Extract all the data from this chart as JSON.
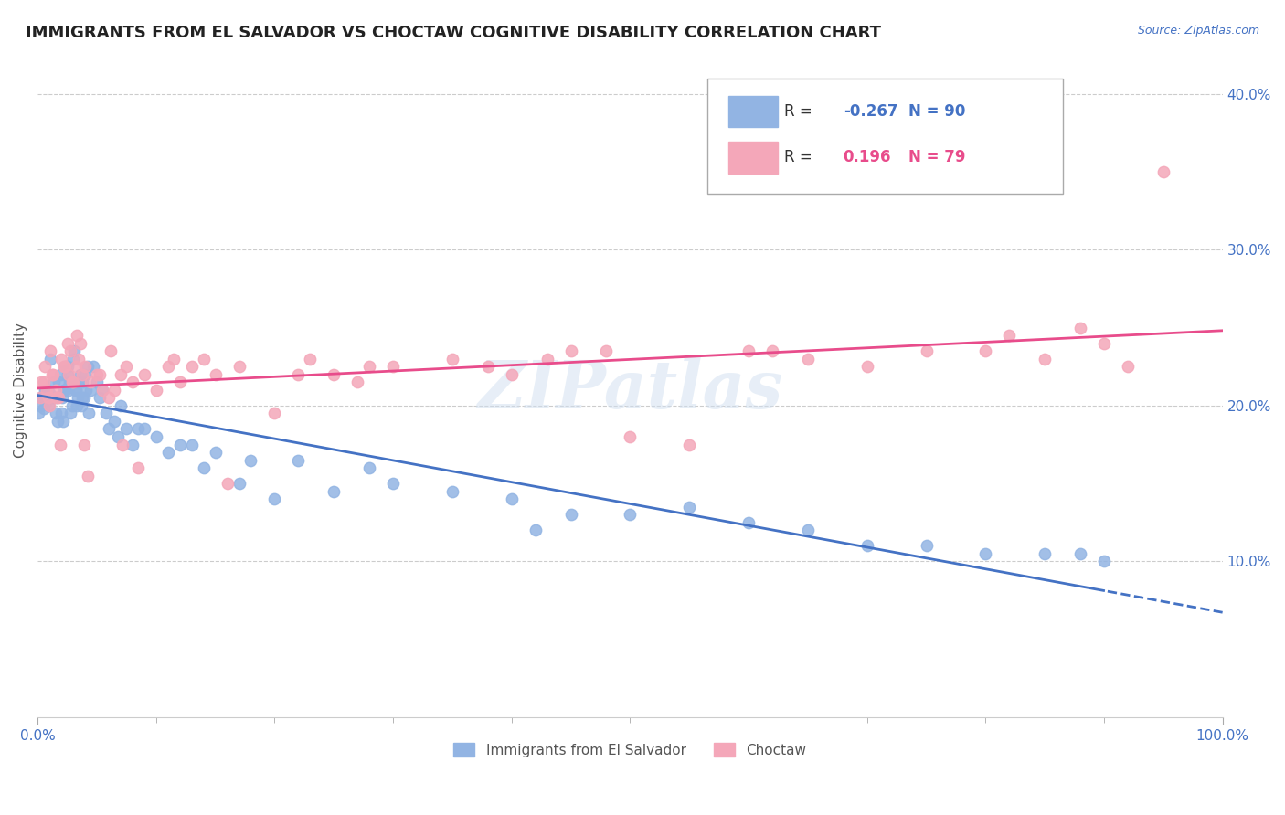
{
  "title": "IMMIGRANTS FROM EL SALVADOR VS CHOCTAW COGNITIVE DISABILITY CORRELATION CHART",
  "source": "Source: ZipAtlas.com",
  "xlabel": "",
  "ylabel": "Cognitive Disability",
  "series": [
    {
      "name": "Immigrants from El Salvador",
      "R": -0.267,
      "N": 90,
      "color": "#92b4e3",
      "trend_color": "#4472c4",
      "x": [
        0.1,
        0.2,
        0.3,
        0.5,
        0.7,
        0.8,
        1.0,
        1.2,
        1.4,
        1.5,
        1.6,
        1.7,
        1.8,
        1.9,
        2.0,
        2.1,
        2.2,
        2.3,
        2.4,
        2.5,
        2.6,
        2.7,
        2.8,
        2.9,
        3.0,
        3.1,
        3.2,
        3.3,
        3.4,
        3.5,
        3.6,
        3.7,
        3.8,
        3.9,
        4.0,
        4.2,
        4.5,
        5.0,
        5.5,
        6.0,
        6.5,
        7.0,
        7.5,
        8.0,
        9.0,
        10.0,
        11.0,
        12.0,
        13.0,
        15.0,
        17.0,
        20.0,
        22.0,
        25.0,
        28.0,
        30.0,
        35.0,
        40.0,
        45.0,
        50.0,
        55.0,
        60.0,
        65.0,
        70.0,
        75.0,
        80.0,
        85.0,
        88.0,
        90.0,
        0.4,
        0.6,
        0.9,
        1.1,
        1.3,
        2.15,
        2.55,
        2.75,
        3.25,
        3.75,
        4.1,
        4.3,
        4.7,
        5.2,
        5.8,
        6.8,
        8.5,
        14.0,
        18.0,
        42.0
      ],
      "y": [
        19.5,
        20.0,
        20.5,
        19.8,
        20.2,
        21.0,
        20.8,
        20.5,
        21.5,
        19.5,
        20.5,
        19.0,
        21.5,
        22.0,
        19.5,
        20.5,
        21.0,
        21.0,
        22.5,
        22.5,
        21.0,
        21.5,
        19.5,
        20.0,
        23.0,
        23.5,
        21.0,
        20.0,
        20.5,
        21.5,
        22.0,
        20.0,
        21.5,
        20.5,
        22.0,
        22.5,
        21.0,
        21.5,
        21.0,
        18.5,
        19.0,
        20.0,
        18.5,
        17.5,
        18.5,
        18.0,
        17.0,
        17.5,
        17.5,
        17.0,
        15.0,
        14.0,
        16.5,
        14.5,
        16.0,
        15.0,
        14.5,
        14.0,
        13.0,
        13.0,
        13.5,
        12.5,
        12.0,
        11.0,
        11.0,
        10.5,
        10.5,
        10.5,
        10.0,
        20.5,
        21.0,
        20.0,
        23.0,
        20.5,
        19.0,
        22.0,
        21.5,
        21.0,
        20.5,
        21.0,
        19.5,
        22.5,
        20.5,
        19.5,
        18.0,
        18.5,
        16.0,
        16.5,
        12.0
      ]
    },
    {
      "name": "Choctaw",
      "R": 0.196,
      "N": 79,
      "color": "#f4a7b9",
      "trend_color": "#e84c8b",
      "x": [
        0.2,
        0.5,
        0.8,
        1.0,
        1.2,
        1.5,
        1.8,
        2.0,
        2.2,
        2.5,
        2.8,
        3.0,
        3.2,
        3.5,
        3.8,
        4.0,
        4.5,
        5.0,
        5.5,
        6.0,
        6.5,
        7.0,
        7.5,
        8.0,
        9.0,
        10.0,
        11.0,
        12.0,
        13.0,
        14.0,
        15.0,
        17.0,
        20.0,
        22.0,
        25.0,
        27.0,
        30.0,
        35.0,
        40.0,
        45.0,
        50.0,
        55.0,
        60.0,
        65.0,
        70.0,
        75.0,
        80.0,
        82.0,
        85.0,
        88.0,
        90.0,
        92.0,
        95.0,
        0.3,
        0.6,
        0.9,
        1.1,
        1.3,
        1.6,
        1.9,
        2.3,
        2.6,
        2.9,
        3.3,
        3.6,
        3.9,
        4.2,
        5.2,
        6.2,
        7.2,
        8.5,
        11.5,
        16.0,
        23.0,
        28.0,
        38.0,
        43.0,
        48.0,
        62.0
      ],
      "y": [
        20.5,
        21.5,
        21.0,
        20.0,
        22.0,
        21.0,
        20.5,
        23.0,
        22.5,
        24.0,
        23.5,
        21.5,
        22.5,
        23.0,
        22.0,
        22.5,
        21.5,
        22.0,
        21.0,
        20.5,
        21.0,
        22.0,
        22.5,
        21.5,
        22.0,
        21.0,
        22.5,
        21.5,
        22.5,
        23.0,
        22.0,
        22.5,
        19.5,
        22.0,
        22.0,
        21.5,
        22.5,
        23.0,
        22.0,
        23.5,
        18.0,
        17.5,
        23.5,
        23.0,
        22.5,
        23.5,
        23.5,
        24.5,
        23.0,
        25.0,
        24.0,
        22.5,
        35.0,
        21.5,
        22.5,
        20.5,
        23.5,
        22.0,
        20.5,
        17.5,
        22.5,
        22.0,
        21.5,
        24.5,
        24.0,
        17.5,
        15.5,
        22.0,
        23.5,
        17.5,
        16.0,
        23.0,
        15.0,
        23.0,
        22.5,
        22.5,
        23.0,
        23.5,
        23.5
      ]
    }
  ],
  "xlim": [
    0,
    100
  ],
  "ylim": [
    0,
    42
  ],
  "yticks": [
    10,
    20,
    30,
    40
  ],
  "ytick_labels": [
    "10.0%",
    "20.0%",
    "30.0%",
    "40.0%"
  ],
  "xtick_labels": [
    "0.0%",
    "100.0%"
  ],
  "grid_color": "#cccccc",
  "background_color": "#ffffff",
  "watermark": "ZIPatlas",
  "title_fontsize": 13,
  "label_fontsize": 11,
  "tick_fontsize": 11,
  "legend_box_color_blue": "#92b4e3",
  "legend_box_color_pink": "#f4a7b9"
}
